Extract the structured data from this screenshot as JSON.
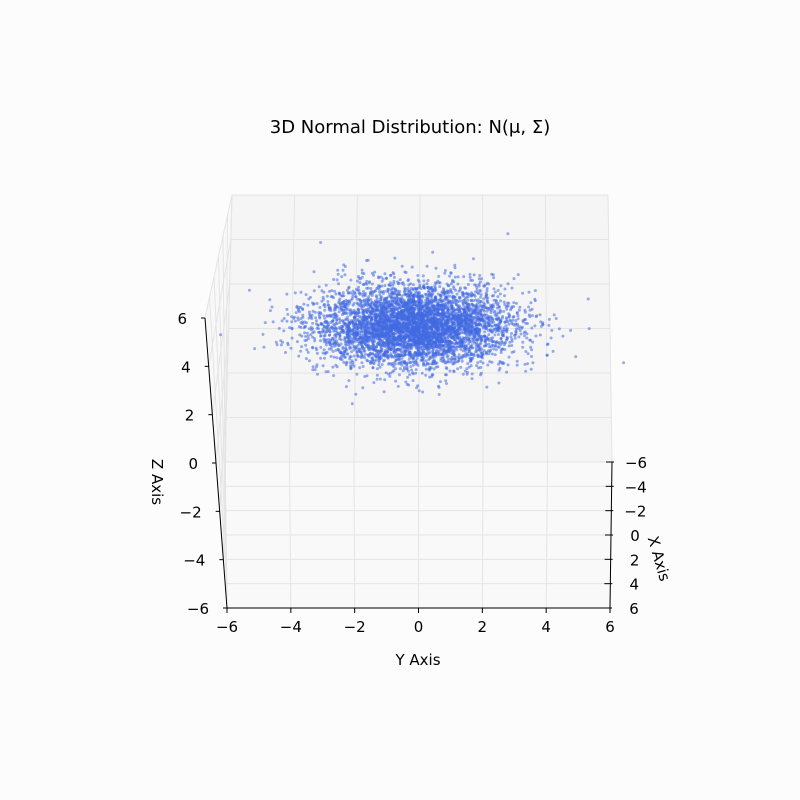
{
  "chart_data": {
    "type": "scatter",
    "title": "3D Normal Distribution: N(μ, Σ)",
    "xlabel": "X Axis",
    "ylabel": "Y Axis",
    "zlabel": "Z Axis",
    "xlim": [
      -6,
      6
    ],
    "ylim": [
      -6,
      6
    ],
    "zlim": [
      -6,
      6
    ],
    "x_ticks": [
      "−6",
      "−4",
      "−2",
      "0",
      "2",
      "4",
      "6"
    ],
    "y_ticks": [
      "−6",
      "−4",
      "−2",
      "0",
      "2",
      "4",
      "6"
    ],
    "z_ticks": [
      "−6",
      "−4",
      "−2",
      "0",
      "2",
      "4",
      "6"
    ],
    "grid": true,
    "point_color": "#4169e1",
    "pane_color": "#f5f5f5",
    "grid_color": "#e4e4e4",
    "distribution": {
      "n_points": 5000,
      "mean": [
        0,
        0,
        3
      ],
      "std": [
        1,
        1.5,
        0.75
      ]
    }
  }
}
